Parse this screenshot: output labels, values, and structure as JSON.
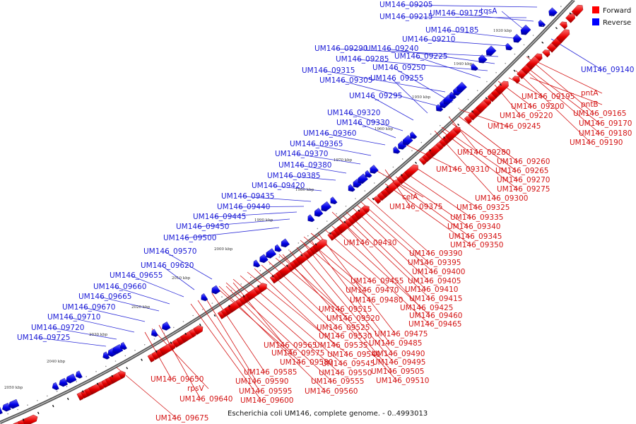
{
  "caption": "Escherichia coli UM146, complete genome. - 0..4993013",
  "legend": {
    "forward_label": "Forward",
    "reverse_label": "Reverse",
    "forward_color": "#ff0000",
    "reverse_color": "#0000ff"
  },
  "ticks": [
    "1930 kbp",
    "1940 kbp",
    "1950 kbp",
    "1960 kbp",
    "1970 kbp",
    "1980 kbp",
    "1990 kbp",
    "2000 kbp",
    "2010 kbp",
    "2020 kbp",
    "2030 kbp",
    "2040 kbp",
    "2050 kbp"
  ],
  "reverse_genes": [
    "UM146_09205",
    "UM146_09215",
    "UM146_09175",
    "tqsA",
    "UM146_09185",
    "UM146_09210",
    "UM146_09290",
    "UM146_09240",
    "UM146_09285",
    "UM146_09225",
    "UM146_09315",
    "UM146_09250",
    "UM146_09305",
    "UM146_09255",
    "UM146_09295",
    "UM146_09320",
    "UM146_09330",
    "UM146_09360",
    "UM146_09365",
    "UM146_09370",
    "UM146_09380",
    "UM146_09385",
    "UM146_09420",
    "UM146_09435",
    "UM146_09440",
    "UM146_09445",
    "UM146_09450",
    "UM146_09500",
    "UM146_09570",
    "UM146_09620",
    "UM146_09655",
    "UM146_09660",
    "UM146_09665",
    "UM146_09670",
    "UM146_09710",
    "UM146_09720",
    "UM146_09725",
    "UM146_09140"
  ],
  "forward_genes": [
    "pntA",
    "UM146_09195",
    "pntB",
    "UM146_09200",
    "UM146_09165",
    "UM146_09220",
    "UM146_09170",
    "UM146_09180",
    "UM146_09245",
    "UM146_09190",
    "UM146_09280",
    "UM146_09260",
    "UM146_09310",
    "UM146_09265",
    "UM146_09270",
    "UM146_09275",
    "UM146_09300",
    "celA",
    "UM146_09375",
    "UM146_09325",
    "UM146_09335",
    "UM146_09340",
    "UM146_09345",
    "UM146_09350",
    "UM146_09430",
    "UM146_09390",
    "UM146_09395",
    "UM146_09400",
    "UM146_09405",
    "UM146_09455",
    "UM146_09470",
    "UM146_09410",
    "UM146_09415",
    "UM146_09480",
    "UM146_09425",
    "UM146_09515",
    "UM146_09460",
    "UM146_09520",
    "UM146_09465",
    "UM146_09525",
    "UM146_09475",
    "UM146_09530",
    "UM146_09485",
    "UM146_09565",
    "UM146_09535",
    "UM146_09575",
    "UM146_09540",
    "UM146_09490",
    "UM146_09580",
    "UM146_09545",
    "UM146_09495",
    "UM146_09585",
    "UM146_09550",
    "UM146_09505",
    "UM146_09590",
    "UM146_09555",
    "UM146_09510",
    "UM146_09650",
    "UM146_09595",
    "UM146_09560",
    "rpsV",
    "UM146_09600",
    "UM146_09640",
    "UM146_09675"
  ]
}
